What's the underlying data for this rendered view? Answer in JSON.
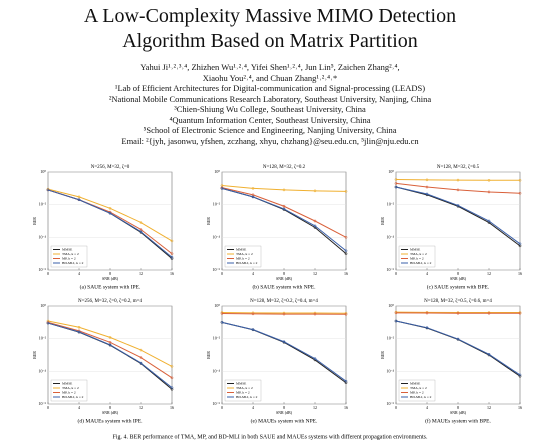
{
  "header": {
    "title_lines": [
      "A Low-Complexity Massive MIMO Detection",
      "Algorithm Based on Matrix Partition"
    ],
    "author_lines": [
      "Yahui Ji¹˒²˒³˒⁴, Zhizhen Wu¹˒²˒⁴, Yifei Shen¹˒²˒⁴, Jun Lin⁵, Zaichen Zhang²˒⁴,",
      "Xiaohu You²˒⁴, and Chuan Zhang¹˒²˒⁴˒*"
    ],
    "affiliations": [
      "¹Lab of Efficient Architectures for Digital-communication and Signal-processing (LEADS)",
      "²National Mobile Communications Research Laboratory, Southeast University, Nanjing, China",
      "³Chien-Shiung Wu College, Southeast University, China",
      "⁴Quantum Information Center, Southeast University, China",
      "⁵School of Electronic Science and Engineering, Nanjing University, China"
    ],
    "email": "Email: ²{jyh, jasonwu, yfshen, zczhang, xhyu, chzhang}@seu.edu.cn, ⁵jlin@nju.edu.cn"
  },
  "figure": {
    "caption": "Fig. 4.   BER performance of TMA, MP, and BD-MLI in both SAUE and MAUEs systems with different propagation environments."
  },
  "chart_data": [
    {
      "type": "line",
      "title": "N=256, M=32, ζ=0",
      "caption": "(a)  SAUE system with IPE.",
      "xlabel": "SNR (dB)",
      "ylabel": "BER",
      "log_y": true,
      "legend": "lower left",
      "x": [
        0,
        4,
        8,
        12,
        16
      ],
      "xlim": [
        0,
        16
      ],
      "ylim": [
        1e-06,
        1
      ],
      "xticks": [
        0,
        4,
        8,
        12,
        16
      ],
      "yticks": [
        {
          "value": 1e-06,
          "label": "10⁻⁶"
        },
        {
          "value": 0.0001,
          "label": "10⁻⁴"
        },
        {
          "value": 0.01,
          "label": "10⁻²"
        },
        {
          "value": 1,
          "label": "10⁰"
        }
      ],
      "series": [
        {
          "name": "MMSE",
          "color": "#222222",
          "values": [
            0.08,
            0.02,
            0.003,
            0.0002,
            5e-06
          ]
        },
        {
          "name": "TMA, k = 2",
          "color": "#f0b030",
          "values": [
            0.09,
            0.03,
            0.006,
            0.0008,
            6e-05
          ]
        },
        {
          "name": "MP, k = 2",
          "color": "#d9603a",
          "values": [
            0.08,
            0.02,
            0.0035,
            0.0003,
            1e-05
          ]
        },
        {
          "name": "BD-MLI, k = 2",
          "color": "#3a5fa8",
          "values": [
            0.08,
            0.02,
            0.003,
            0.00022,
            6e-06
          ]
        }
      ]
    },
    {
      "type": "line",
      "title": "N=128, M=32, ζ=0.2",
      "caption": "(b)  SAUE system with NPE.",
      "xlabel": "SNR (dB)",
      "ylabel": "BER",
      "log_y": true,
      "legend": "lower left",
      "x": [
        0,
        4,
        8,
        12,
        16
      ],
      "xlim": [
        0,
        16
      ],
      "ylim": [
        1e-06,
        1
      ],
      "xticks": [
        0,
        4,
        8,
        12,
        16
      ],
      "yticks": [
        {
          "value": 1e-06,
          "label": "10⁻⁶"
        },
        {
          "value": 0.0001,
          "label": "10⁻⁴"
        },
        {
          "value": 0.01,
          "label": "10⁻²"
        },
        {
          "value": 1,
          "label": "10⁰"
        }
      ],
      "series": [
        {
          "name": "MMSE",
          "color": "#222222",
          "values": [
            0.1,
            0.03,
            0.005,
            0.0004,
            1e-05
          ]
        },
        {
          "name": "TMA, k = 2",
          "color": "#f0b030",
          "values": [
            0.15,
            0.1,
            0.08,
            0.07,
            0.065
          ]
        },
        {
          "name": "MP, k = 2",
          "color": "#d9603a",
          "values": [
            0.11,
            0.04,
            0.008,
            0.001,
            0.0001
          ]
        },
        {
          "name": "BD-MLI, k = 2",
          "color": "#3a5fa8",
          "values": [
            0.1,
            0.03,
            0.0055,
            0.0005,
            1.5e-05
          ]
        }
      ]
    },
    {
      "type": "line",
      "title": "N=128, M=32, ζ=0.5",
      "caption": "(c)  SAUE system with BPE.",
      "xlabel": "SNR (dB)",
      "ylabel": "BER",
      "log_y": true,
      "legend": "lower left",
      "x": [
        0,
        4,
        8,
        12,
        16
      ],
      "xlim": [
        0,
        16
      ],
      "ylim": [
        1e-06,
        1
      ],
      "xticks": [
        0,
        4,
        8,
        12,
        16
      ],
      "yticks": [
        {
          "value": 1e-06,
          "label": "10⁻⁶"
        },
        {
          "value": 0.0001,
          "label": "10⁻⁴"
        },
        {
          "value": 0.01,
          "label": "10⁻²"
        },
        {
          "value": 1,
          "label": "10⁰"
        }
      ],
      "series": [
        {
          "name": "MMSE",
          "color": "#222222",
          "values": [
            0.12,
            0.04,
            0.008,
            0.0008,
            3e-05
          ]
        },
        {
          "name": "TMA, k = 2",
          "color": "#f0b030",
          "values": [
            0.35,
            0.33,
            0.32,
            0.31,
            0.31
          ]
        },
        {
          "name": "MP, k = 2",
          "color": "#d9603a",
          "values": [
            0.2,
            0.12,
            0.08,
            0.06,
            0.05
          ]
        },
        {
          "name": "BD-MLI, k = 2",
          "color": "#3a5fa8",
          "values": [
            0.12,
            0.045,
            0.009,
            0.001,
            4e-05
          ]
        }
      ]
    },
    {
      "type": "line",
      "title": "N=256, M=32, ζ=0, ζ=0.2, m=4",
      "caption": "(d)  MAUEs system with IPE.",
      "xlabel": "SNR (dB)",
      "ylabel": "BER",
      "log_y": true,
      "legend": "lower left",
      "x": [
        0,
        4,
        8,
        12,
        16
      ],
      "xlim": [
        0,
        16
      ],
      "ylim": [
        1e-06,
        1
      ],
      "xticks": [
        0,
        4,
        8,
        12,
        16
      ],
      "yticks": [
        {
          "value": 1e-06,
          "label": "10⁻⁶"
        },
        {
          "value": 0.0001,
          "label": "10⁻⁴"
        },
        {
          "value": 0.01,
          "label": "10⁻²"
        },
        {
          "value": 1,
          "label": "10⁰"
        }
      ],
      "series": [
        {
          "name": "MMSE",
          "color": "#222222",
          "values": [
            0.09,
            0.025,
            0.004,
            0.0003,
            8e-06
          ]
        },
        {
          "name": "TMA, k = 2",
          "color": "#f0b030",
          "values": [
            0.12,
            0.05,
            0.012,
            0.002,
            0.0002
          ]
        },
        {
          "name": "MP, k = 2",
          "color": "#d9603a",
          "values": [
            0.1,
            0.03,
            0.006,
            0.0007,
            4e-05
          ]
        },
        {
          "name": "BD-MLI, k = 2",
          "color": "#3a5fa8",
          "values": [
            0.09,
            0.026,
            0.0042,
            0.00032,
            1e-05
          ]
        }
      ]
    },
    {
      "type": "line",
      "title": "N=128, M=32, ζ=0.2, ζ=0.4, m=4",
      "caption": "(e)  MAUEs system with NPE.",
      "xlabel": "SNR (dB)",
      "ylabel": "BER",
      "log_y": true,
      "legend": "lower left",
      "x": [
        0,
        4,
        8,
        12,
        16
      ],
      "xlim": [
        0,
        16
      ],
      "ylim": [
        1e-06,
        1
      ],
      "xticks": [
        0,
        4,
        8,
        12,
        16
      ],
      "yticks": [
        {
          "value": 1e-06,
          "label": "10⁻⁶"
        },
        {
          "value": 0.0001,
          "label": "10⁻⁴"
        },
        {
          "value": 0.01,
          "label": "10⁻²"
        },
        {
          "value": 1,
          "label": "10⁰"
        }
      ],
      "series": [
        {
          "name": "MMSE",
          "color": "#222222",
          "values": [
            0.1,
            0.035,
            0.006,
            0.0005,
            2e-05
          ]
        },
        {
          "name": "TMA, k = 2",
          "color": "#f0b030",
          "values": [
            0.4,
            0.38,
            0.37,
            0.37,
            0.36
          ]
        },
        {
          "name": "MP, k = 2",
          "color": "#d9603a",
          "values": [
            0.35,
            0.33,
            0.32,
            0.32,
            0.31
          ]
        },
        {
          "name": "BD-MLI, k = 2",
          "color": "#3a5fa8",
          "values": [
            0.1,
            0.036,
            0.0065,
            0.0006,
            2.5e-05
          ]
        }
      ]
    },
    {
      "type": "line",
      "title": "N=128, M=32, ζ=0.5, ζ=0.6, m=4",
      "caption": "(f)  MAUEs system with BPE.",
      "xlabel": "SNR (dB)",
      "ylabel": "BER",
      "log_y": true,
      "legend": "lower left",
      "x": [
        0,
        4,
        8,
        12,
        16
      ],
      "xlim": [
        0,
        16
      ],
      "ylim": [
        1e-06,
        1
      ],
      "xticks": [
        0,
        4,
        8,
        12,
        16
      ],
      "yticks": [
        {
          "value": 1e-06,
          "label": "10⁻⁶"
        },
        {
          "value": 0.0001,
          "label": "10⁻⁴"
        },
        {
          "value": 0.01,
          "label": "10⁻²"
        },
        {
          "value": 1,
          "label": "10⁰"
        }
      ],
      "series": [
        {
          "name": "MMSE",
          "color": "#222222",
          "values": [
            0.12,
            0.045,
            0.009,
            0.001,
            5e-05
          ]
        },
        {
          "name": "TMA, k = 2",
          "color": "#f0b030",
          "values": [
            0.42,
            0.41,
            0.4,
            0.4,
            0.4
          ]
        },
        {
          "name": "MP, k = 2",
          "color": "#d9603a",
          "values": [
            0.38,
            0.37,
            0.36,
            0.36,
            0.36
          ]
        },
        {
          "name": "BD-MLI, k = 2",
          "color": "#3a5fa8",
          "values": [
            0.12,
            0.047,
            0.0095,
            0.0011,
            6e-05
          ]
        }
      ]
    }
  ]
}
